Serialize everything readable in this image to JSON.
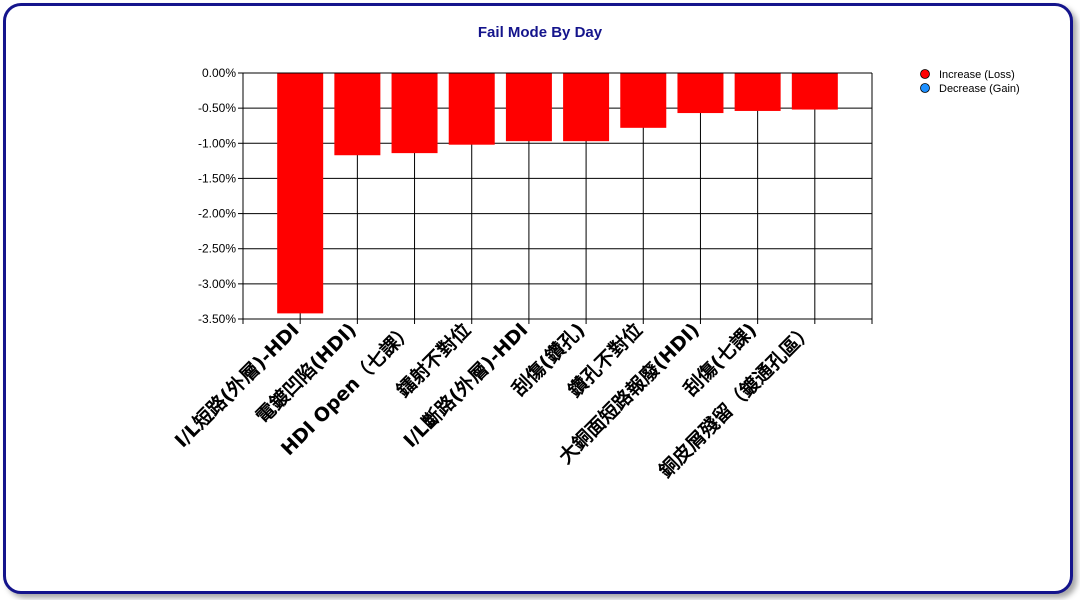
{
  "chart_data": {
    "type": "bar",
    "title": "Fail Mode By Day",
    "categories": [
      "I/L短路(外層)-HDI",
      "電鍍凹陷(HDI)",
      "HDI Open（七課）",
      "鐳射不對位",
      "I/L斷路(外層)-HDI",
      "刮傷(鑽孔)",
      "鑽孔不對位",
      "大銅面短路報廢(HDI)",
      "刮傷(七課)",
      "銅皮屑殘留（鍍通孔區）"
    ],
    "series": [
      {
        "name": "Increase (Loss)",
        "color": "#ff0000",
        "values": [
          -3.42,
          -1.17,
          -1.14,
          -1.02,
          -0.97,
          -0.97,
          -0.78,
          -0.57,
          -0.54,
          -0.52
        ]
      }
    ],
    "legend": [
      {
        "label": "Increase (Loss)",
        "color": "#ff0000"
      },
      {
        "label": "Decrease (Gain)",
        "color": "#1e90ff"
      }
    ],
    "ylim": [
      -3.5,
      0
    ],
    "yticks": [
      "0.00%",
      "-0.50%",
      "-1.00%",
      "-1.50%",
      "-2.00%",
      "-2.50%",
      "-3.00%",
      "-3.50%"
    ],
    "ytick_values": [
      0,
      -0.5,
      -1.0,
      -1.5,
      -2.0,
      -2.5,
      -3.0,
      -3.5
    ],
    "grid": true,
    "legend_position": "top-right"
  }
}
